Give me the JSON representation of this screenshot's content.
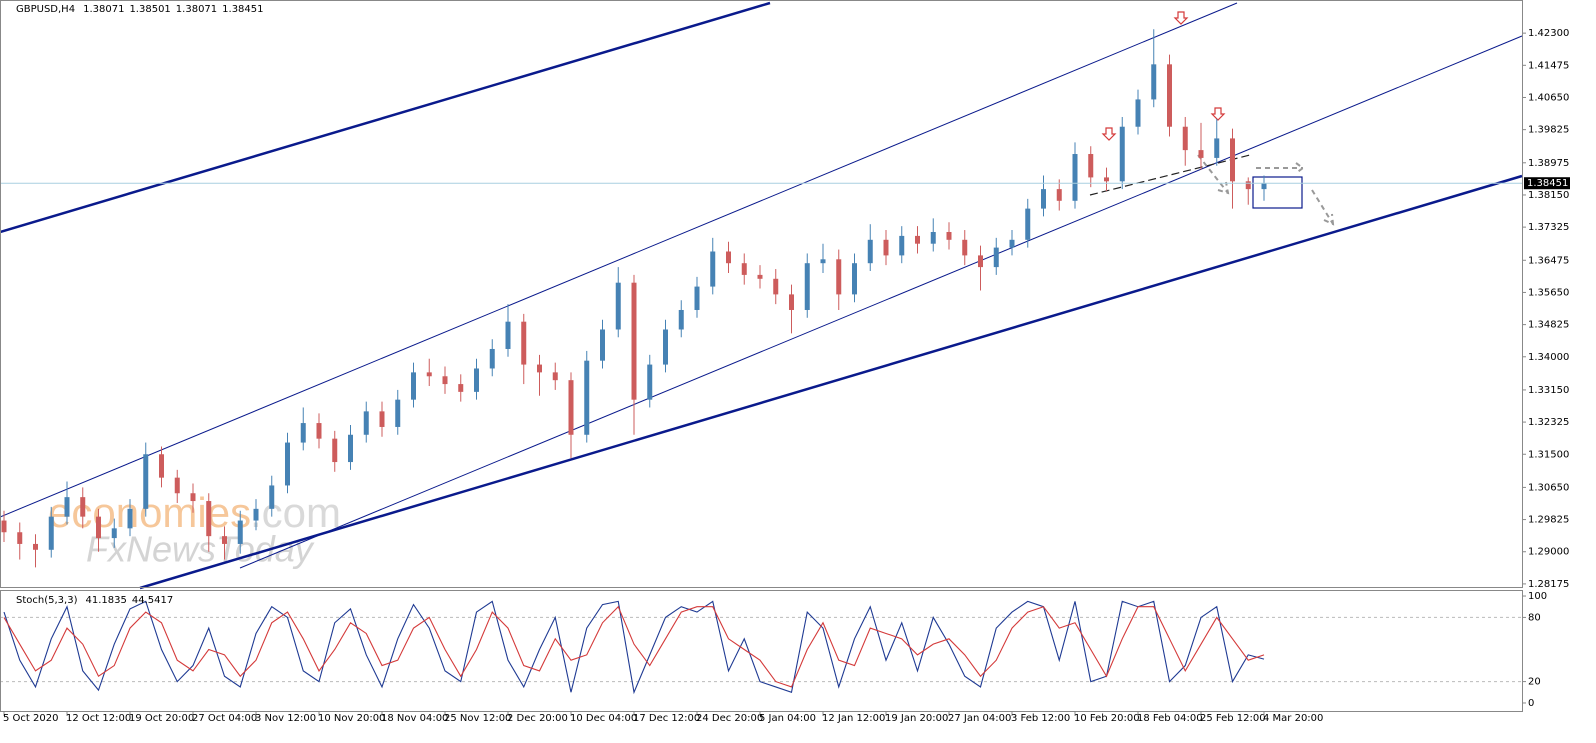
{
  "chart_data": [
    {
      "type": "candlestick",
      "title": "GBPUSD,H4",
      "header_values": [
        1.38071,
        1.38501,
        1.38071,
        1.38451
      ],
      "current_price": 1.38451,
      "watermark": {
        "brand": "economies",
        "suffix": ".com",
        "sub": "FxNewsToday"
      },
      "categories": [
        "5 Oct 2020",
        null,
        null,
        null,
        "12 Oct 12:00",
        null,
        null,
        null,
        "19 Oct 20:00",
        null,
        null,
        null,
        "27 Oct 04:00",
        null,
        null,
        null,
        "3 Nov 12:00",
        null,
        null,
        null,
        "10 Nov 20:00",
        null,
        null,
        null,
        "18 Nov 04:00",
        null,
        null,
        null,
        "25 Nov 12:00",
        null,
        null,
        null,
        "2 Dec 20:00",
        null,
        null,
        null,
        "10 Dec 04:00",
        null,
        null,
        null,
        "17 Dec 12:00",
        null,
        null,
        null,
        "24 Dec 20:00",
        null,
        null,
        null,
        "5 Jan 04:00",
        null,
        null,
        null,
        "12 Jan 12:00",
        null,
        null,
        null,
        "19 Jan 20:00",
        null,
        null,
        null,
        "27 Jan 04:00",
        null,
        null,
        null,
        "3 Feb 12:00",
        null,
        null,
        null,
        "10 Feb 20:00",
        null,
        null,
        null,
        "18 Feb 04:00",
        null,
        null,
        null,
        "25 Feb 12:00",
        null,
        null,
        null,
        "4 Mar 20:00"
      ],
      "open": [
        1.298,
        1.295,
        1.292,
        1.2905,
        1.299,
        1.304,
        1.299,
        1.2935,
        1.296,
        1.301,
        1.315,
        1.309,
        1.305,
        1.303,
        1.294,
        1.292,
        1.298,
        1.301,
        1.307,
        1.318,
        1.323,
        1.319,
        1.313,
        1.32,
        1.326,
        1.322,
        1.329,
        1.336,
        1.335,
        1.333,
        1.331,
        1.337,
        1.342,
        1.349,
        1.338,
        1.336,
        1.334,
        1.32,
        1.339,
        1.347,
        1.359,
        1.329,
        1.338,
        1.347,
        1.352,
        1.358,
        1.367,
        1.364,
        1.361,
        1.36,
        1.356,
        1.352,
        1.364,
        1.365,
        1.356,
        1.364,
        1.37,
        1.366,
        1.371,
        1.369,
        1.372,
        1.37,
        1.366,
        1.363,
        1.368,
        1.37,
        1.378,
        1.383,
        1.38,
        1.392,
        1.386,
        1.385,
        1.399,
        1.406,
        1.415,
        1.399,
        1.393,
        1.391,
        1.396,
        1.385,
        1.383
      ],
      "high": [
        1.3005,
        1.2975,
        1.2945,
        1.3015,
        1.308,
        1.3065,
        1.301,
        1.2985,
        1.3035,
        1.318,
        1.317,
        1.311,
        1.3075,
        1.305,
        1.2965,
        1.3005,
        1.3035,
        1.3095,
        1.3205,
        1.327,
        1.3255,
        1.321,
        1.3225,
        1.3285,
        1.3285,
        1.3315,
        1.3385,
        1.3395,
        1.3375,
        1.3355,
        1.3395,
        1.3445,
        1.3535,
        1.351,
        1.3405,
        1.3385,
        1.336,
        1.3415,
        1.3495,
        1.363,
        1.361,
        1.3405,
        1.3495,
        1.3545,
        1.3605,
        1.3705,
        1.3695,
        1.3665,
        1.3635,
        1.3625,
        1.3585,
        1.3665,
        1.369,
        1.3675,
        1.3665,
        1.374,
        1.3725,
        1.3735,
        1.3735,
        1.3755,
        1.3745,
        1.3725,
        1.3685,
        1.3705,
        1.3725,
        1.3805,
        1.3865,
        1.3855,
        1.395,
        1.394,
        1.3885,
        1.4015,
        1.4085,
        1.424,
        1.4175,
        1.4015,
        1.4,
        1.401,
        1.3985,
        1.386,
        1.3865
      ],
      "low": [
        1.2925,
        1.288,
        1.286,
        1.2885,
        1.297,
        1.296,
        1.29,
        1.291,
        1.294,
        1.299,
        1.3065,
        1.3025,
        1.3,
        1.29,
        1.288,
        1.2895,
        1.2955,
        1.299,
        1.305,
        1.316,
        1.3165,
        1.3105,
        1.311,
        1.318,
        1.3195,
        1.32,
        1.327,
        1.3325,
        1.3305,
        1.3285,
        1.329,
        1.335,
        1.34,
        1.333,
        1.33,
        1.3315,
        1.314,
        1.318,
        1.337,
        1.345,
        1.32,
        1.327,
        1.336,
        1.345,
        1.35,
        1.356,
        1.3615,
        1.3585,
        1.3575,
        1.3535,
        1.346,
        1.35,
        1.3615,
        1.352,
        1.354,
        1.362,
        1.3635,
        1.364,
        1.3665,
        1.367,
        1.3675,
        1.3635,
        1.357,
        1.361,
        1.366,
        1.368,
        1.376,
        1.3775,
        1.378,
        1.3835,
        1.3825,
        1.383,
        1.397,
        1.404,
        1.3965,
        1.389,
        1.388,
        1.389,
        1.378,
        1.379,
        1.38
      ],
      "close": [
        1.295,
        1.292,
        1.2905,
        1.299,
        1.304,
        1.299,
        1.2935,
        1.296,
        1.301,
        1.315,
        1.309,
        1.305,
        1.303,
        1.294,
        1.292,
        1.298,
        1.301,
        1.307,
        1.318,
        1.323,
        1.319,
        1.313,
        1.32,
        1.326,
        1.322,
        1.329,
        1.336,
        1.335,
        1.333,
        1.331,
        1.337,
        1.342,
        1.349,
        1.338,
        1.336,
        1.334,
        1.32,
        1.339,
        1.347,
        1.359,
        1.329,
        1.338,
        1.347,
        1.352,
        1.358,
        1.367,
        1.364,
        1.361,
        1.36,
        1.356,
        1.352,
        1.364,
        1.365,
        1.356,
        1.364,
        1.37,
        1.366,
        1.371,
        1.369,
        1.372,
        1.37,
        1.366,
        1.363,
        1.368,
        1.37,
        1.378,
        1.383,
        1.38,
        1.392,
        1.386,
        1.385,
        1.399,
        1.406,
        1.415,
        1.399,
        1.393,
        1.391,
        1.396,
        1.385,
        1.383,
        1.3845
      ],
      "up_color": "#4682b4",
      "down_color": "#cd5c5c",
      "ylim": [
        1.2807,
        1.4315
      ],
      "yticks": [
        {
          "value": 1.423,
          "label": "1.42300"
        },
        1.41475,
        {
          "value": 1.4065,
          "label": "1.40650"
        },
        1.39825,
        1.38975,
        {
          "value": 1.3815,
          "label": "1.38150"
        },
        1.37325,
        1.36475,
        {
          "value": 1.3565,
          "label": "1.35650"
        },
        1.34825,
        {
          "value": 1.34,
          "label": "1.34000"
        },
        {
          "value": 1.3315,
          "label": "1.33150"
        },
        1.32325,
        {
          "value": 1.315,
          "label": "1.31500"
        },
        {
          "value": 1.3065,
          "label": "1.30650"
        },
        1.29825,
        {
          "value": 1.29,
          "label": "1.29000"
        },
        1.28175
      ]
    },
    {
      "type": "line",
      "title": "Stoch(5,3,3)",
      "header_values": [
        41.1835,
        44.5417
      ],
      "series": [
        {
          "color": "#1f3a93",
          "values": [
            85,
            40,
            15,
            60,
            90,
            30,
            12,
            55,
            88,
            95,
            50,
            20,
            35,
            70,
            25,
            15,
            65,
            90,
            80,
            30,
            20,
            75,
            88,
            45,
            15,
            60,
            92,
            70,
            30,
            20,
            85,
            95,
            40,
            15,
            50,
            80,
            10,
            70,
            92,
            95,
            10,
            45,
            80,
            90,
            85,
            95,
            30,
            60,
            20,
            15,
            10,
            85,
            70,
            15,
            60,
            90,
            40,
            75,
            30,
            80,
            55,
            25,
            15,
            70,
            85,
            95,
            90,
            40,
            95,
            20,
            25,
            95,
            90,
            95,
            20,
            35,
            80,
            90,
            20,
            45,
            41
          ]
        },
        {
          "color": "#d43a3a",
          "values": [
            80,
            55,
            30,
            40,
            70,
            55,
            25,
            35,
            70,
            85,
            75,
            40,
            30,
            50,
            45,
            25,
            40,
            75,
            85,
            60,
            30,
            50,
            75,
            65,
            35,
            40,
            70,
            80,
            50,
            25,
            50,
            85,
            70,
            35,
            30,
            60,
            40,
            45,
            75,
            90,
            55,
            35,
            60,
            85,
            90,
            90,
            60,
            50,
            40,
            20,
            15,
            50,
            75,
            40,
            35,
            70,
            65,
            60,
            45,
            55,
            60,
            45,
            25,
            40,
            70,
            85,
            90,
            70,
            75,
            50,
            25,
            60,
            90,
            90,
            60,
            30,
            55,
            80,
            60,
            40,
            45
          ]
        }
      ],
      "ylim": [
        -7.5,
        104.7
      ],
      "yticks": [
        100,
        80,
        20,
        0
      ],
      "level_lines": true
    }
  ]
}
